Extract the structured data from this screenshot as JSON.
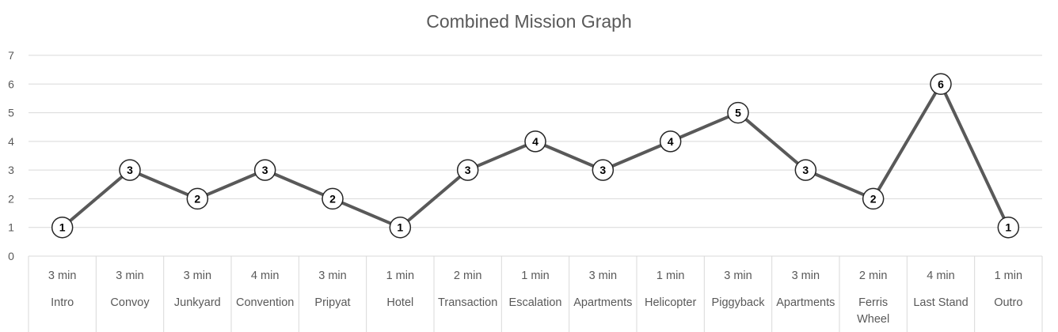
{
  "chart_data": {
    "type": "line",
    "title": "Combined Mission Graph",
    "xlabel": "",
    "ylabel": "",
    "ylim": [
      0,
      7
    ],
    "yticks": [
      0,
      1,
      2,
      3,
      4,
      5,
      6,
      7
    ],
    "grid": true,
    "legend": "none",
    "categories": [
      {
        "duration": "3 min",
        "name": [
          "Intro"
        ]
      },
      {
        "duration": "3 min",
        "name": [
          "Convoy"
        ]
      },
      {
        "duration": "3 min",
        "name": [
          "Junkyard"
        ]
      },
      {
        "duration": "4 min",
        "name": [
          "Convention"
        ]
      },
      {
        "duration": "3 min",
        "name": [
          "Pripyat"
        ]
      },
      {
        "duration": "1 min",
        "name": [
          "Hotel"
        ]
      },
      {
        "duration": "2 min",
        "name": [
          "Transaction"
        ]
      },
      {
        "duration": "1 min",
        "name": [
          "Escalation"
        ]
      },
      {
        "duration": "3 min",
        "name": [
          "Apartments"
        ]
      },
      {
        "duration": "1 min",
        "name": [
          "Helicopter"
        ]
      },
      {
        "duration": "3 min",
        "name": [
          "Piggyback"
        ]
      },
      {
        "duration": "3 min",
        "name": [
          "Apartments"
        ]
      },
      {
        "duration": "2 min",
        "name": [
          "Ferris",
          "Wheel"
        ]
      },
      {
        "duration": "4 min",
        "name": [
          "Last Stand"
        ]
      },
      {
        "duration": "1 min",
        "name": [
          "Outro"
        ]
      }
    ],
    "series": [
      {
        "values": [
          1,
          3,
          2,
          3,
          2,
          1,
          3,
          4,
          3,
          4,
          5,
          3,
          2,
          6,
          1
        ]
      }
    ],
    "colors": {
      "line": "#595959",
      "grid": "#d9d9d9",
      "text": "#595959",
      "marker_fill": "#ffffff"
    }
  }
}
